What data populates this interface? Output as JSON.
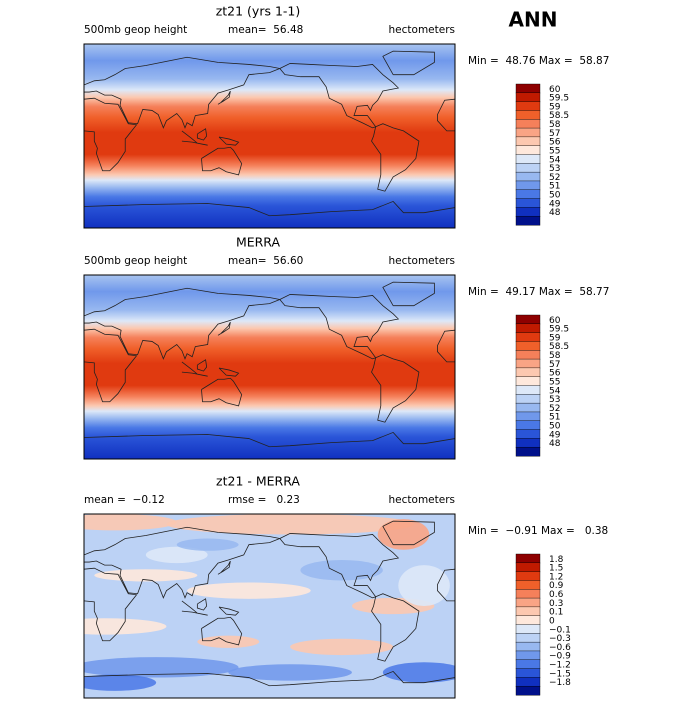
{
  "header": {
    "season": "ANN"
  },
  "colorbar_colors": [
    "#8e0000",
    "#c01a00",
    "#e03a10",
    "#f0602a",
    "#f5805a",
    "#f9a485",
    "#fcc8b0",
    "#fee8dc",
    "#dde8f8",
    "#bcd2f5",
    "#98b8f0",
    "#7098eb",
    "#4a78e6",
    "#2a55d8",
    "#1030c0",
    "#00108a"
  ],
  "panels": [
    {
      "title": "zt21 (yrs 1-1)",
      "left_label": "500mb geop height",
      "center_label": "mean=  56.48",
      "units": "hectometers",
      "minmax": "Min =  48.76 Max =  58.87",
      "colorbar_labels": [
        "60",
        "59.5",
        "59",
        "58.5",
        "58",
        "57",
        "56",
        "55",
        "54",
        "53",
        "52",
        "51",
        "50",
        "49",
        "48"
      ]
    },
    {
      "title": "MERRA",
      "left_label": "500mb geop height",
      "center_label": "mean=  56.60",
      "units": "hectometers",
      "minmax": "Min =  49.17 Max =  58.77",
      "colorbar_labels": [
        "60",
        "59.5",
        "59",
        "58.5",
        "58",
        "57",
        "56",
        "55",
        "54",
        "53",
        "52",
        "51",
        "50",
        "49",
        "48"
      ]
    },
    {
      "title": "zt21 - MERRA",
      "left_label": "mean =  −0.12",
      "center_label": "rmse =   0.23",
      "units": "hectometers",
      "minmax": "Min =  −0.91 Max =   0.38",
      "colorbar_labels": [
        "1.8",
        "1.5",
        "1.2",
        "0.9",
        "0.6",
        "0.3",
        "0.1",
        "0",
        "−0.1",
        "−0.3",
        "−0.6",
        "−0.9",
        "−1.2",
        "−1.5",
        "−1.8"
      ]
    }
  ]
}
